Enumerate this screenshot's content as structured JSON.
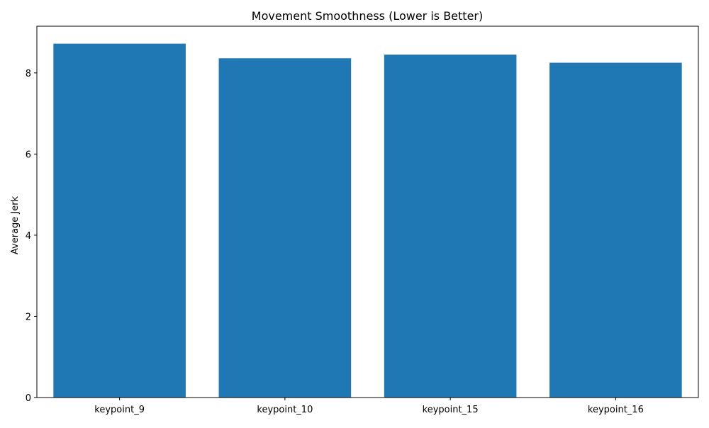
{
  "chart_data": {
    "type": "bar",
    "title": "Movement Smoothness (Lower is Better)",
    "xlabel": "",
    "ylabel": "Average Jerk",
    "categories": [
      "keypoint_9",
      "keypoint_10",
      "keypoint_15",
      "keypoint_16"
    ],
    "values": [
      8.72,
      8.36,
      8.45,
      8.25
    ],
    "ylim": [
      0,
      9.15
    ],
    "yticks": [
      0,
      2,
      4,
      6,
      8
    ],
    "bar_color": "#1f77b4",
    "grid": false,
    "legend": "none"
  }
}
